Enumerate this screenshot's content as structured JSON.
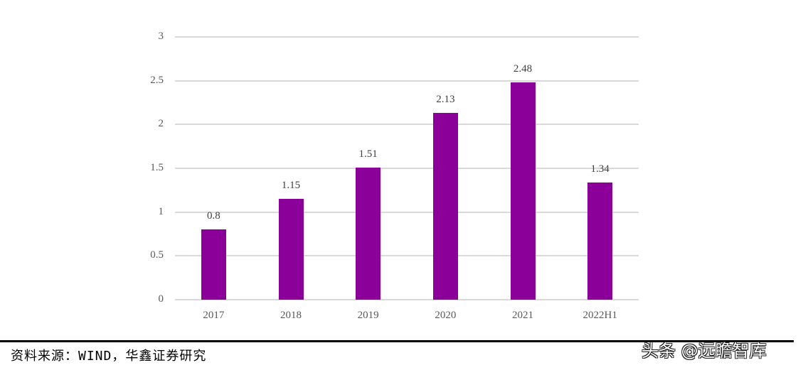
{
  "chart_data": {
    "type": "bar",
    "title": "",
    "xlabel": "",
    "ylabel": "",
    "categories": [
      "2017",
      "2018",
      "2019",
      "2020",
      "2021",
      "2022H1"
    ],
    "values": [
      0.8,
      1.15,
      1.51,
      2.13,
      2.48,
      1.34
    ],
    "data_labels": [
      "0.8",
      "1.15",
      "1.51",
      "2.13",
      "2.48",
      "1.34"
    ],
    "ylim": [
      0,
      3
    ],
    "yticks": [
      "0",
      "0.5",
      "1",
      "1.5",
      "2",
      "2.5",
      "3"
    ],
    "grid": true,
    "legend": null,
    "bar_color": "#8b0099"
  },
  "footer": {
    "source": "资料来源：WIND，华鑫证券研究",
    "watermark": "头条 @远瞻智库"
  }
}
